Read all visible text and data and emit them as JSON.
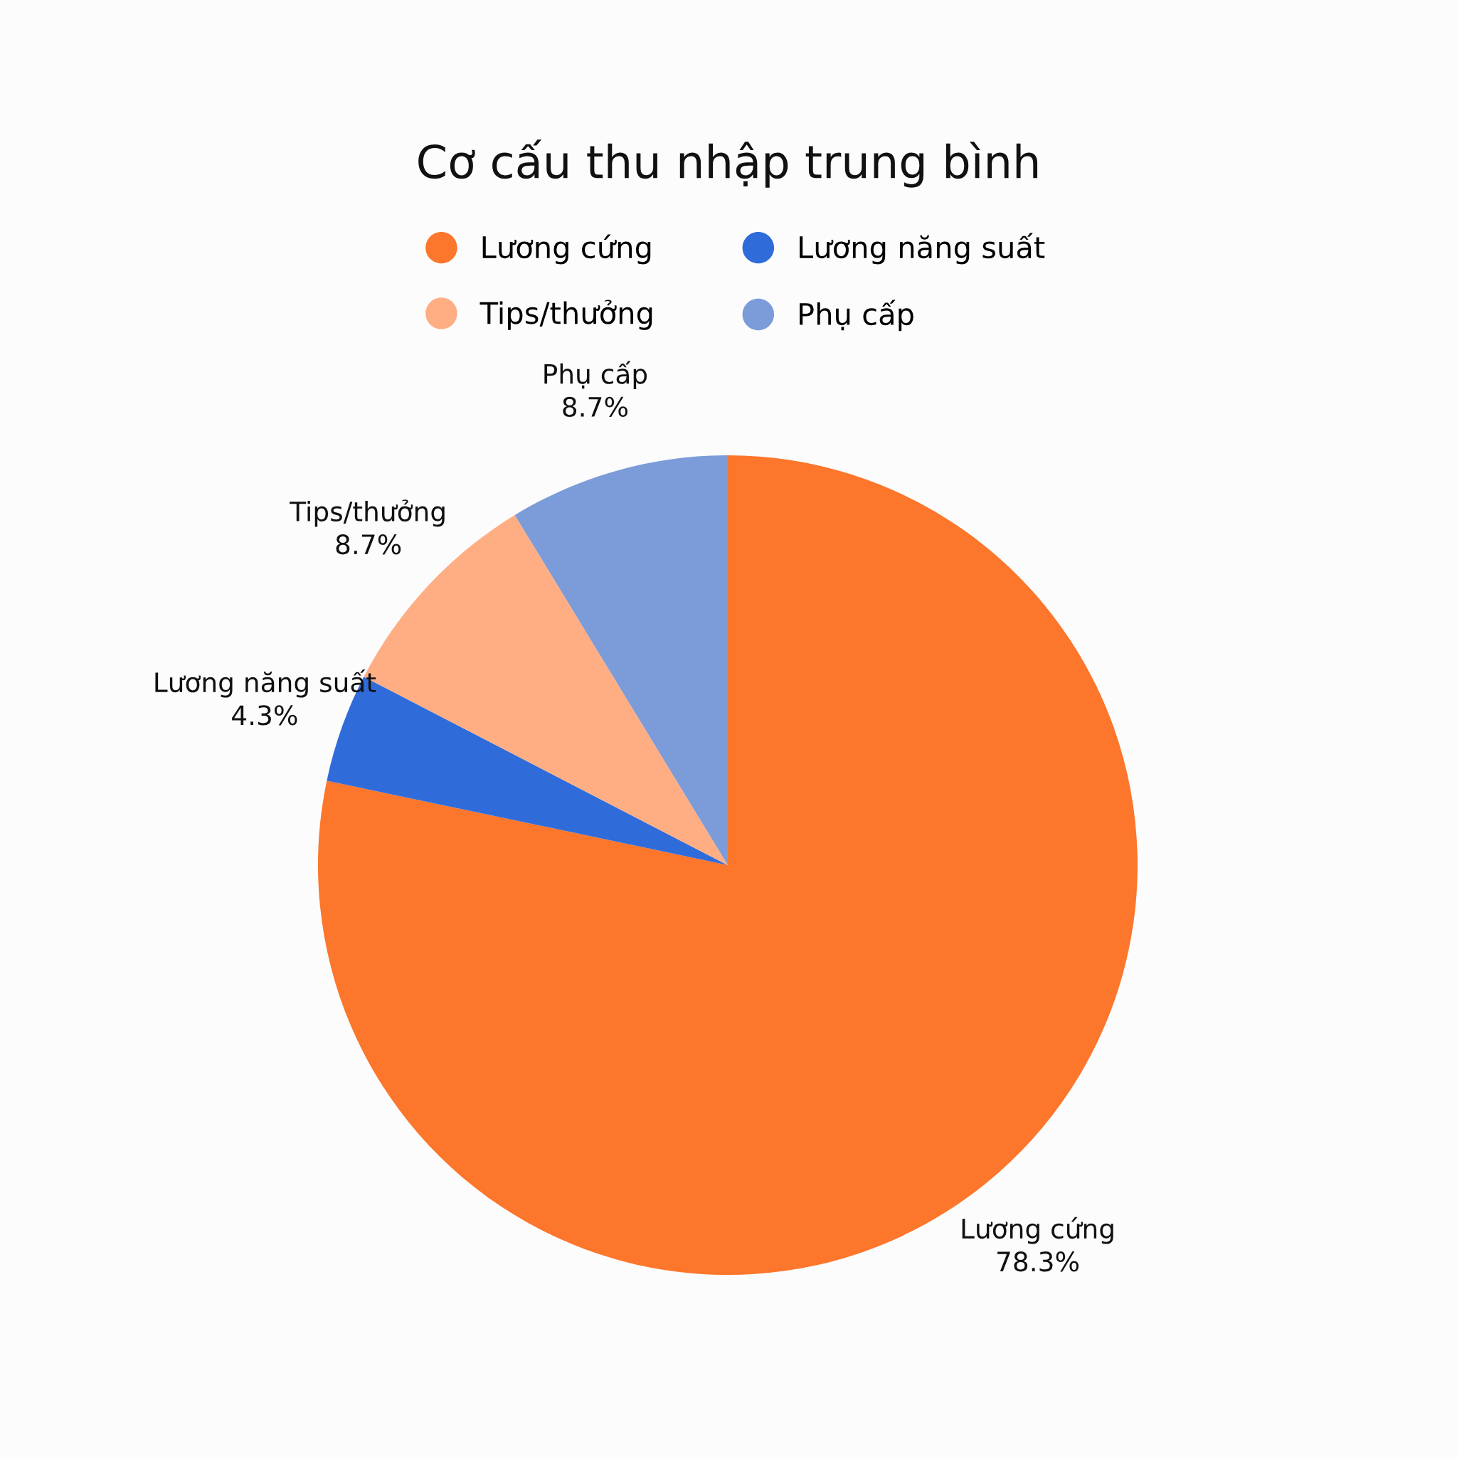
{
  "chart_data": {
    "type": "pie",
    "title": "Cơ cấu thu nhập trung bình",
    "categories": [
      "Lương cứng",
      "Lương năng suất",
      "Tips/thưởng",
      "Phụ cấp"
    ],
    "values": [
      78.3,
      4.3,
      8.7,
      8.7
    ],
    "value_labels": [
      "78.3%",
      "4.3%",
      "8.7%",
      "8.7%"
    ],
    "colors": [
      "#fc762c",
      "#306cd9",
      "#ffae84",
      "#7b9cd9"
    ],
    "legend": "top"
  }
}
